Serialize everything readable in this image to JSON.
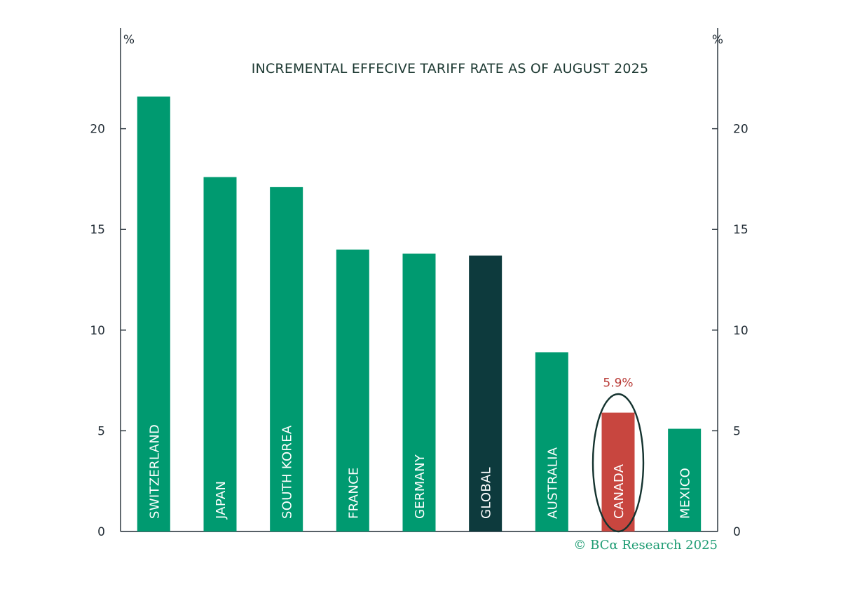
{
  "chart_data": {
    "type": "bar",
    "title": "INCREMENTAL EFFECIVE TARIFF RATE AS OF AUGUST 2025",
    "left_unit": "%",
    "right_unit": "%",
    "categories": [
      "SWITZERLAND",
      "JAPAN",
      "SOUTH KOREA",
      "FRANCE",
      "GERMANY",
      "GLOBAL",
      "AUSTRALIA",
      "CANADA",
      "MEXICO"
    ],
    "values": [
      21.6,
      17.6,
      17.1,
      14.0,
      13.8,
      13.7,
      8.9,
      5.9,
      5.1
    ],
    "ylim": [
      0,
      25
    ],
    "yticks": [
      0,
      5,
      10,
      15,
      20
    ],
    "ytick_labels": [
      "0",
      "5",
      "10",
      "15",
      "20"
    ],
    "bar_colors": [
      "#009a70",
      "#009a70",
      "#009a70",
      "#009a70",
      "#009a70",
      "#0d3a3d",
      "#009a70",
      "#c8463f",
      "#009a70"
    ],
    "highlight": {
      "category": "CANADA",
      "label": "5.9%",
      "color": "#b83a36"
    },
    "grid": false,
    "source": "© BCα Research 2025",
    "source_color": "#1e9c73"
  }
}
